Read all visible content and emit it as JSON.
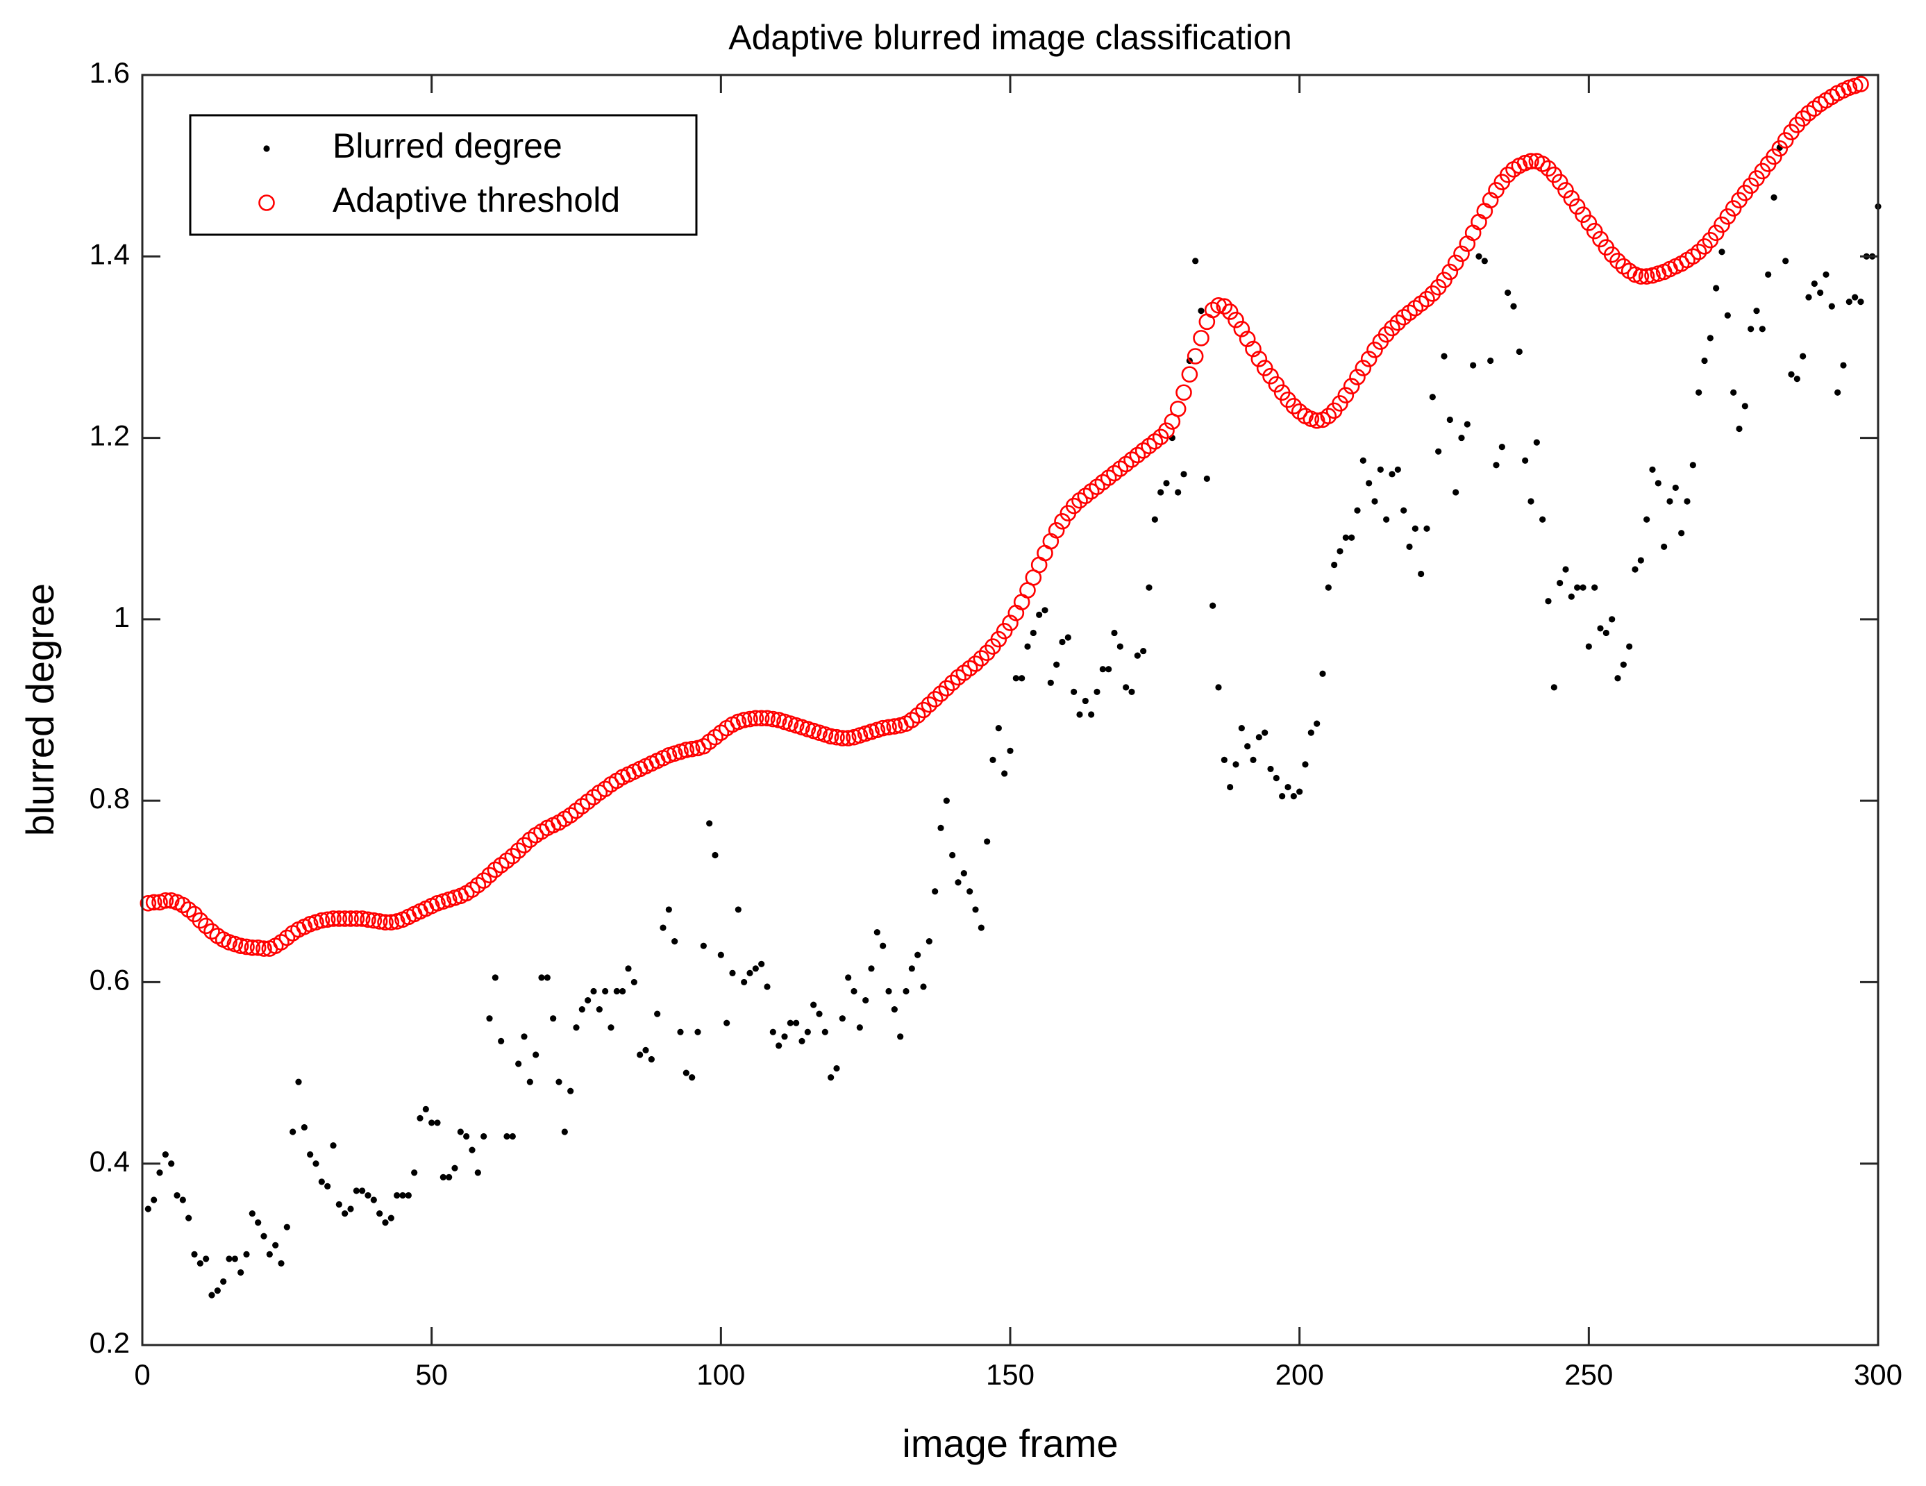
{
  "chart_data": {
    "type": "scatter",
    "title": "Adaptive blurred image classification",
    "x_label": "image frame",
    "y_label": "blurred degree",
    "xlim": [
      0,
      300
    ],
    "xticks": [
      0,
      50,
      100,
      150,
      200,
      250,
      300
    ],
    "ylim": [
      0.2,
      1.6
    ],
    "yticks": [
      0.2,
      0.4,
      0.6,
      0.8,
      1,
      1.2,
      1.4,
      1.6
    ],
    "grid": false,
    "legend": "northwest",
    "x": [
      1,
      2,
      3,
      4,
      5,
      6,
      7,
      8,
      9,
      10,
      11,
      12,
      13,
      14,
      15,
      16,
      17,
      18,
      19,
      20,
      21,
      22,
      23,
      24,
      25,
      26,
      27,
      28,
      29,
      30,
      31,
      32,
      33,
      34,
      35,
      36,
      37,
      38,
      39,
      40,
      41,
      42,
      43,
      44,
      45,
      46,
      47,
      48,
      49,
      50,
      51,
      52,
      53,
      54,
      55,
      56,
      57,
      58,
      59,
      60,
      61,
      62,
      63,
      64,
      65,
      66,
      67,
      68,
      69,
      70,
      71,
      72,
      73,
      74,
      75,
      76,
      77,
      78,
      79,
      80,
      81,
      82,
      83,
      84,
      85,
      86,
      87,
      88,
      89,
      90,
      91,
      92,
      93,
      94,
      95,
      96,
      97,
      98,
      99,
      100,
      101,
      102,
      103,
      104,
      105,
      106,
      107,
      108,
      109,
      110,
      111,
      112,
      113,
      114,
      115,
      116,
      117,
      118,
      119,
      120,
      121,
      122,
      123,
      124,
      125,
      126,
      127,
      128,
      129,
      130,
      131,
      132,
      133,
      134,
      135,
      136,
      137,
      138,
      139,
      140,
      141,
      142,
      143,
      144,
      145,
      146,
      147,
      148,
      149,
      150,
      151,
      152,
      153,
      154,
      155,
      156,
      157,
      158,
      159,
      160,
      161,
      162,
      163,
      164,
      165,
      166,
      167,
      168,
      169,
      170,
      171,
      172,
      173,
      174,
      175,
      176,
      177,
      178,
      179,
      180,
      181,
      182,
      183,
      184,
      185,
      186,
      187,
      188,
      189,
      190,
      191,
      192,
      193,
      194,
      195,
      196,
      197,
      198,
      199,
      200,
      201,
      202,
      203,
      204,
      205,
      206,
      207,
      208,
      209,
      210,
      211,
      212,
      213,
      214,
      215,
      216,
      217,
      218,
      219,
      220,
      221,
      222,
      223,
      224,
      225,
      226,
      227,
      228,
      229,
      230,
      231,
      232,
      233,
      234,
      235,
      236,
      237,
      238,
      239,
      240,
      241,
      242,
      243,
      244,
      245,
      246,
      247,
      248,
      249,
      250,
      251,
      252,
      253,
      254,
      255,
      256,
      257,
      258,
      259,
      260,
      261,
      262,
      263,
      264,
      265,
      266,
      267,
      268,
      269,
      270,
      271,
      272,
      273,
      274,
      275,
      276,
      277,
      278,
      279,
      280,
      281,
      282,
      283,
      284,
      285,
      286,
      287,
      288,
      289,
      290,
      291,
      292,
      293,
      294,
      295,
      296,
      297,
      298,
      299,
      300
    ],
    "series": [
      {
        "name": "Blurred degree",
        "color": "#000000",
        "marker": "dot",
        "values": [
          0.35,
          0.36,
          0.39,
          0.41,
          0.4,
          0.365,
          0.36,
          0.34,
          0.3,
          0.29,
          0.295,
          0.255,
          0.26,
          0.27,
          0.295,
          0.295,
          0.28,
          0.3,
          0.345,
          0.335,
          0.32,
          0.3,
          0.31,
          0.29,
          0.33,
          0.435,
          0.49,
          0.44,
          0.41,
          0.4,
          0.38,
          0.375,
          0.42,
          0.355,
          0.345,
          0.35,
          0.37,
          0.37,
          0.365,
          0.36,
          0.345,
          0.335,
          0.34,
          0.365,
          0.365,
          0.365,
          0.39,
          0.45,
          0.46,
          0.445,
          0.445,
          0.385,
          0.385,
          0.395,
          0.435,
          0.43,
          0.415,
          0.39,
          0.43,
          0.56,
          0.605,
          0.535,
          0.43,
          0.43,
          0.51,
          0.54,
          0.49,
          0.52,
          0.605,
          0.605,
          0.56,
          0.49,
          0.435,
          0.48,
          0.55,
          0.57,
          0.58,
          0.59,
          0.57,
          0.59,
          0.55,
          0.59,
          0.59,
          0.615,
          0.6,
          0.52,
          0.525,
          0.515,
          0.565,
          0.66,
          0.68,
          0.645,
          0.545,
          0.5,
          0.495,
          0.545,
          0.64,
          0.775,
          0.74,
          0.63,
          0.555,
          0.61,
          0.68,
          0.6,
          0.61,
          0.615,
          0.62,
          0.595,
          0.545,
          0.53,
          0.54,
          0.555,
          0.555,
          0.535,
          0.545,
          0.575,
          0.565,
          0.545,
          0.495,
          0.505,
          0.56,
          0.605,
          0.59,
          0.55,
          0.58,
          0.615,
          0.655,
          0.64,
          0.59,
          0.57,
          0.54,
          0.59,
          0.615,
          0.63,
          0.595,
          0.645,
          0.7,
          0.77,
          0.8,
          0.74,
          0.71,
          0.72,
          0.7,
          0.68,
          0.66,
          0.755,
          0.845,
          0.88,
          0.83,
          0.855,
          0.935,
          0.935,
          0.97,
          0.985,
          1.005,
          1.01,
          0.93,
          0.95,
          0.975,
          0.98,
          0.92,
          0.895,
          0.91,
          0.895,
          0.92,
          0.945,
          0.945,
          0.985,
          0.97,
          0.925,
          0.92,
          0.96,
          0.965,
          1.035,
          1.11,
          1.14,
          1.15,
          1.2,
          1.14,
          1.16,
          1.285,
          1.395,
          1.34,
          1.155,
          1.015,
          0.925,
          0.845,
          0.815,
          0.84,
          0.88,
          0.86,
          0.845,
          0.87,
          0.875,
          0.835,
          0.825,
          0.805,
          0.815,
          0.805,
          0.81,
          0.84,
          0.875,
          0.885,
          0.94,
          1.035,
          1.06,
          1.075,
          1.09,
          1.09,
          1.12,
          1.175,
          1.15,
          1.13,
          1.165,
          1.11,
          1.16,
          1.165,
          1.12,
          1.08,
          1.1,
          1.05,
          1.1,
          1.245,
          1.185,
          1.29,
          1.22,
          1.14,
          1.2,
          1.215,
          1.28,
          1.4,
          1.395,
          1.285,
          1.17,
          1.19,
          1.36,
          1.345,
          1.295,
          1.175,
          1.13,
          1.195,
          1.11,
          1.02,
          0.925,
          1.04,
          1.055,
          1.025,
          1.035,
          1.035,
          0.97,
          1.035,
          0.99,
          0.985,
          1.0,
          0.935,
          0.95,
          0.97,
          1.055,
          1.065,
          1.11,
          1.165,
          1.15,
          1.08,
          1.13,
          1.145,
          1.095,
          1.13,
          1.17,
          1.25,
          1.285,
          1.31,
          1.365,
          1.405,
          1.335,
          1.25,
          1.21,
          1.235,
          1.32,
          1.34,
          1.32,
          1.38,
          1.465,
          1.52,
          1.395,
          1.27,
          1.265,
          1.29,
          1.355,
          1.37,
          1.36,
          1.38,
          1.345,
          1.25,
          1.28,
          1.35,
          1.355,
          1.35,
          1.4,
          1.4,
          1.455
        ]
      },
      {
        "name": "Adaptive threshold",
        "color": "#ff0000",
        "marker": "circle",
        "values": [
          0.687,
          0.688,
          0.688,
          0.69,
          0.69,
          0.688,
          0.685,
          0.68,
          0.675,
          0.668,
          0.662,
          0.656,
          0.651,
          0.647,
          0.644,
          0.642,
          0.64,
          0.639,
          0.638,
          0.638,
          0.637,
          0.637,
          0.64,
          0.644,
          0.649,
          0.654,
          0.658,
          0.661,
          0.664,
          0.666,
          0.668,
          0.669,
          0.67,
          0.67,
          0.67,
          0.67,
          0.67,
          0.67,
          0.669,
          0.668,
          0.667,
          0.666,
          0.666,
          0.667,
          0.669,
          0.672,
          0.675,
          0.678,
          0.681,
          0.684,
          0.687,
          0.689,
          0.691,
          0.693,
          0.695,
          0.698,
          0.702,
          0.707,
          0.712,
          0.718,
          0.724,
          0.729,
          0.734,
          0.739,
          0.745,
          0.751,
          0.757,
          0.762,
          0.766,
          0.77,
          0.773,
          0.776,
          0.78,
          0.784,
          0.789,
          0.794,
          0.799,
          0.804,
          0.809,
          0.813,
          0.818,
          0.822,
          0.826,
          0.829,
          0.832,
          0.835,
          0.838,
          0.841,
          0.844,
          0.847,
          0.85,
          0.852,
          0.854,
          0.856,
          0.857,
          0.858,
          0.86,
          0.865,
          0.87,
          0.875,
          0.88,
          0.884,
          0.887,
          0.889,
          0.89,
          0.891,
          0.891,
          0.891,
          0.89,
          0.889,
          0.887,
          0.885,
          0.883,
          0.881,
          0.879,
          0.877,
          0.875,
          0.873,
          0.871,
          0.87,
          0.869,
          0.869,
          0.87,
          0.872,
          0.874,
          0.876,
          0.878,
          0.88,
          0.881,
          0.882,
          0.883,
          0.885,
          0.889,
          0.894,
          0.9,
          0.906,
          0.912,
          0.918,
          0.924,
          0.93,
          0.936,
          0.941,
          0.946,
          0.951,
          0.957,
          0.963,
          0.97,
          0.978,
          0.987,
          0.996,
          1.007,
          1.019,
          1.032,
          1.046,
          1.06,
          1.073,
          1.086,
          1.098,
          1.108,
          1.117,
          1.125,
          1.131,
          1.136,
          1.141,
          1.146,
          1.151,
          1.156,
          1.161,
          1.166,
          1.171,
          1.176,
          1.181,
          1.186,
          1.191,
          1.196,
          1.201,
          1.208,
          1.218,
          1.232,
          1.25,
          1.27,
          1.29,
          1.31,
          1.328,
          1.341,
          1.346,
          1.345,
          1.339,
          1.33,
          1.32,
          1.309,
          1.298,
          1.287,
          1.277,
          1.268,
          1.259,
          1.25,
          1.242,
          1.235,
          1.229,
          1.224,
          1.221,
          1.219,
          1.22,
          1.224,
          1.23,
          1.238,
          1.247,
          1.257,
          1.267,
          1.277,
          1.287,
          1.297,
          1.306,
          1.314,
          1.321,
          1.327,
          1.333,
          1.338,
          1.343,
          1.348,
          1.353,
          1.359,
          1.366,
          1.374,
          1.383,
          1.393,
          1.403,
          1.414,
          1.426,
          1.438,
          1.45,
          1.462,
          1.473,
          1.482,
          1.49,
          1.496,
          1.5,
          1.503,
          1.505,
          1.505,
          1.502,
          1.497,
          1.49,
          1.482,
          1.473,
          1.464,
          1.455,
          1.446,
          1.437,
          1.428,
          1.419,
          1.41,
          1.402,
          1.395,
          1.389,
          1.384,
          1.38,
          1.378,
          1.378,
          1.379,
          1.381,
          1.383,
          1.386,
          1.389,
          1.392,
          1.396,
          1.4,
          1.405,
          1.411,
          1.418,
          1.426,
          1.435,
          1.444,
          1.453,
          1.462,
          1.47,
          1.478,
          1.486,
          1.494,
          1.502,
          1.51,
          1.519,
          1.528,
          1.537,
          1.545,
          1.552,
          1.558,
          1.563,
          1.568,
          1.572,
          1.576,
          1.58,
          1.583,
          1.586,
          1.588,
          1.59,
          null,
          null,
          null
        ]
      }
    ]
  }
}
